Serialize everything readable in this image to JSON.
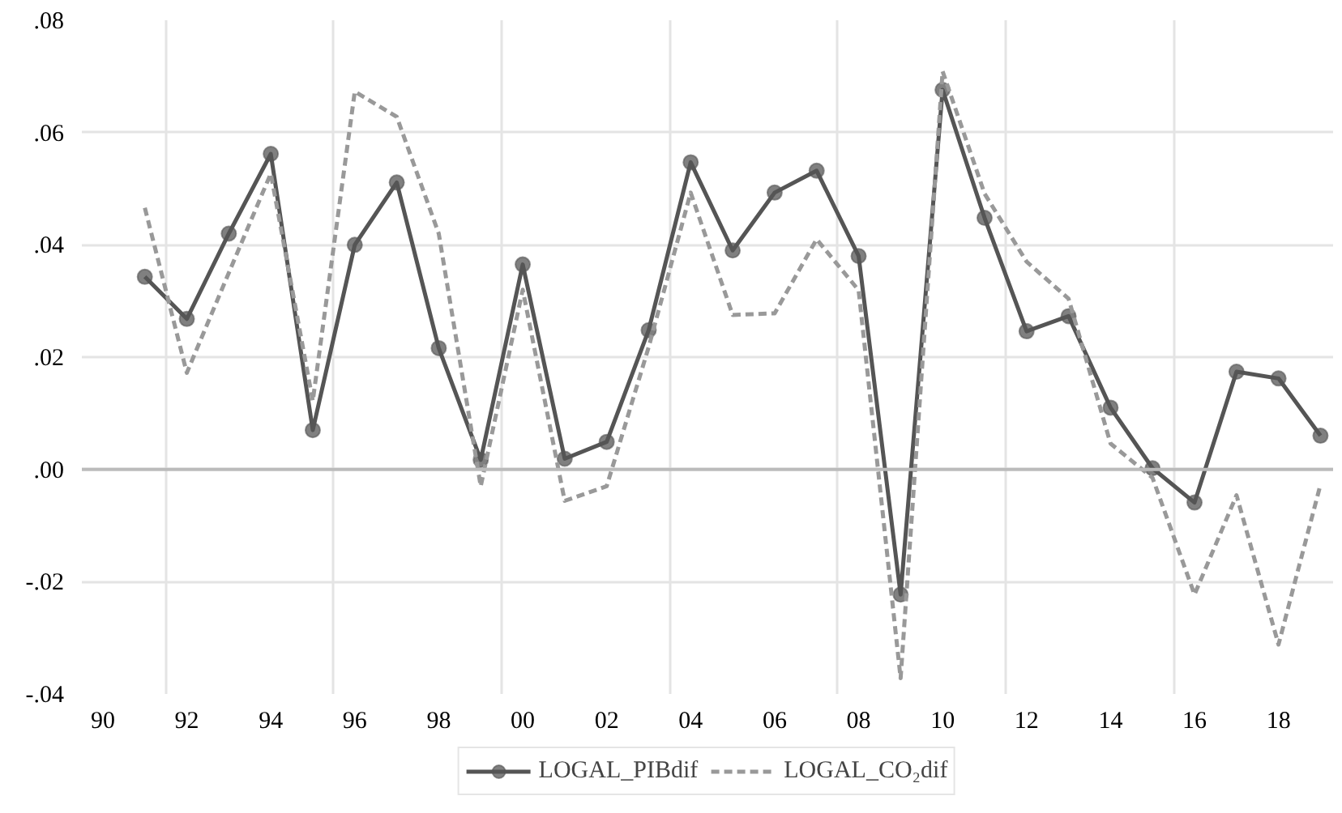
{
  "chart_data": {
    "type": "line",
    "x": [
      1991,
      1992,
      1993,
      1994,
      1995,
      1996,
      1997,
      1998,
      1999,
      2000,
      2001,
      2002,
      2003,
      2004,
      2005,
      2006,
      2007,
      2008,
      2009,
      2010,
      2011,
      2012,
      2013,
      2014,
      2015,
      2016,
      2017,
      2018,
      2019
    ],
    "series": [
      {
        "name": "LOGAL_PIBdif",
        "color": "#555555",
        "marker": "circle",
        "line_style": "solid",
        "values": [
          0.0343,
          0.0268,
          0.042,
          0.0562,
          0.007,
          0.04,
          0.0511,
          0.0216,
          0.0017,
          0.0365,
          0.0019,
          0.0049,
          0.0248,
          0.0547,
          0.039,
          0.0493,
          0.0532,
          0.038,
          -0.0223,
          0.0676,
          0.0448,
          0.0246,
          0.0273,
          0.011,
          0.0002,
          -0.0059,
          0.0174,
          0.0162,
          0.006
        ]
      },
      {
        "name": "LOGAL_CO₂dif",
        "color": "#999999",
        "marker": "none",
        "line_style": "dashed",
        "values": [
          0.0466,
          0.0172,
          0.035,
          0.0527,
          0.0122,
          0.0673,
          0.0628,
          0.042,
          -0.003,
          0.032,
          -0.0056,
          -0.003,
          0.0218,
          0.0493,
          0.0275,
          0.0278,
          0.041,
          0.0319,
          -0.0372,
          0.0709,
          0.0491,
          0.037,
          0.0304,
          0.0046,
          -0.0015,
          -0.0223,
          -0.0046,
          -0.0312,
          -0.0027
        ]
      }
    ],
    "xlim": [
      1989.5,
      2019.3
    ],
    "xticks": [
      {
        "value": 1990,
        "label": "90"
      },
      {
        "value": 1992,
        "label": "92"
      },
      {
        "value": 1994,
        "label": "94"
      },
      {
        "value": 1996,
        "label": "96"
      },
      {
        "value": 1998,
        "label": "98"
      },
      {
        "value": 2000,
        "label": "00"
      },
      {
        "value": 2002,
        "label": "02"
      },
      {
        "value": 2004,
        "label": "04"
      },
      {
        "value": 2006,
        "label": "06"
      },
      {
        "value": 2008,
        "label": "08"
      },
      {
        "value": 2010,
        "label": "10"
      },
      {
        "value": 2012,
        "label": "12"
      },
      {
        "value": 2014,
        "label": "14"
      },
      {
        "value": 2016,
        "label": "16"
      },
      {
        "value": 2018,
        "label": "18"
      },
      {
        "value": 1991.5,
        "label": null
      },
      {
        "value": 1995.5,
        "label": null
      },
      {
        "value": 1999.5,
        "label": null
      },
      {
        "value": 2003.5,
        "label": null
      },
      {
        "value": 2007.5,
        "label": null
      },
      {
        "value": 2011.5,
        "label": null
      },
      {
        "value": 2015.5,
        "label": null
      }
    ],
    "ylim": [
      -0.04,
      0.08
    ],
    "yticks": [
      {
        "value": -0.04,
        "label": "-.04"
      },
      {
        "value": -0.02,
        "label": "-.02"
      },
      {
        "value": 0,
        "label": ".00"
      },
      {
        "value": 0.02,
        "label": ".02"
      },
      {
        "value": 0.04,
        "label": ".04"
      },
      {
        "value": 0.06,
        "label": ".06"
      },
      {
        "value": 0.08,
        "label": ".08"
      }
    ],
    "ref_lines": [
      {
        "axis": "y",
        "value": 0,
        "color": "#bbbbbb"
      }
    ],
    "grid": true,
    "legend": "bottom"
  }
}
